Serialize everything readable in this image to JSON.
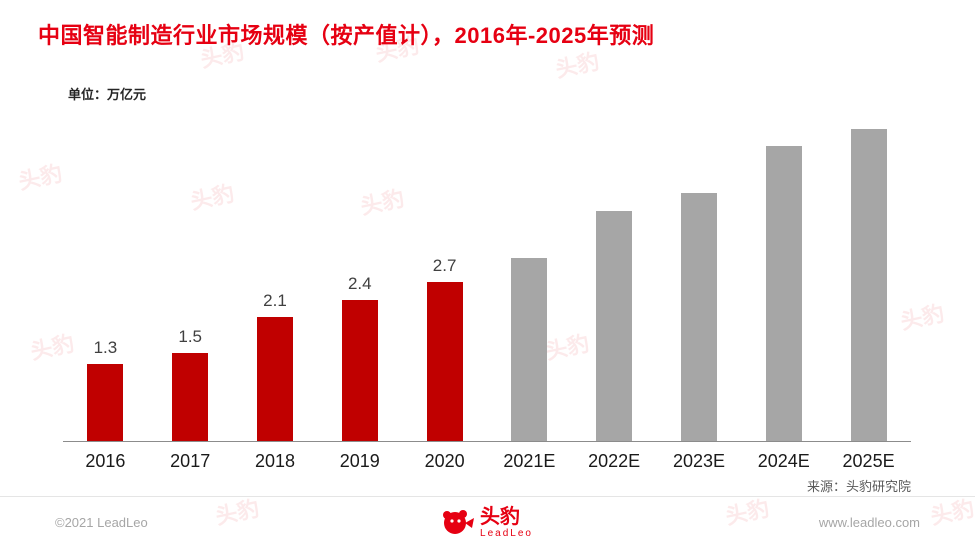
{
  "title": "中国智能制造行业市场规模（按产值计），2016年-2025年预测",
  "unit_label": "单位：万亿元",
  "source_label": "来源：头豹研究院",
  "watermark": "头豹",
  "footer": {
    "copyright": "©2021 LeadLeo",
    "brand_cn": "头豹",
    "brand_en": "LeadLeo",
    "website": "www.leadleo.com"
  },
  "colors": {
    "title": "#e60012",
    "actual_bar": "#c00000",
    "forecast_bar": "#a6a6a6"
  },
  "chart_data": {
    "type": "bar",
    "title": "中国智能制造行业市场规模（按产值计），2016年-2025年预测",
    "categories": [
      "2016",
      "2017",
      "2018",
      "2019",
      "2020",
      "2021E",
      "2022E",
      "2023E",
      "2024E",
      "2025E"
    ],
    "values": [
      1.3,
      1.5,
      2.1,
      2.4,
      2.7,
      3.1,
      3.9,
      4.2,
      5.0,
      5.3
    ],
    "actual_series_count": 5,
    "value_labels_shown_for": 5,
    "xlabel": "",
    "ylabel": "万亿元",
    "ylim": [
      0,
      5.6
    ],
    "grid": false,
    "legend": "none"
  }
}
